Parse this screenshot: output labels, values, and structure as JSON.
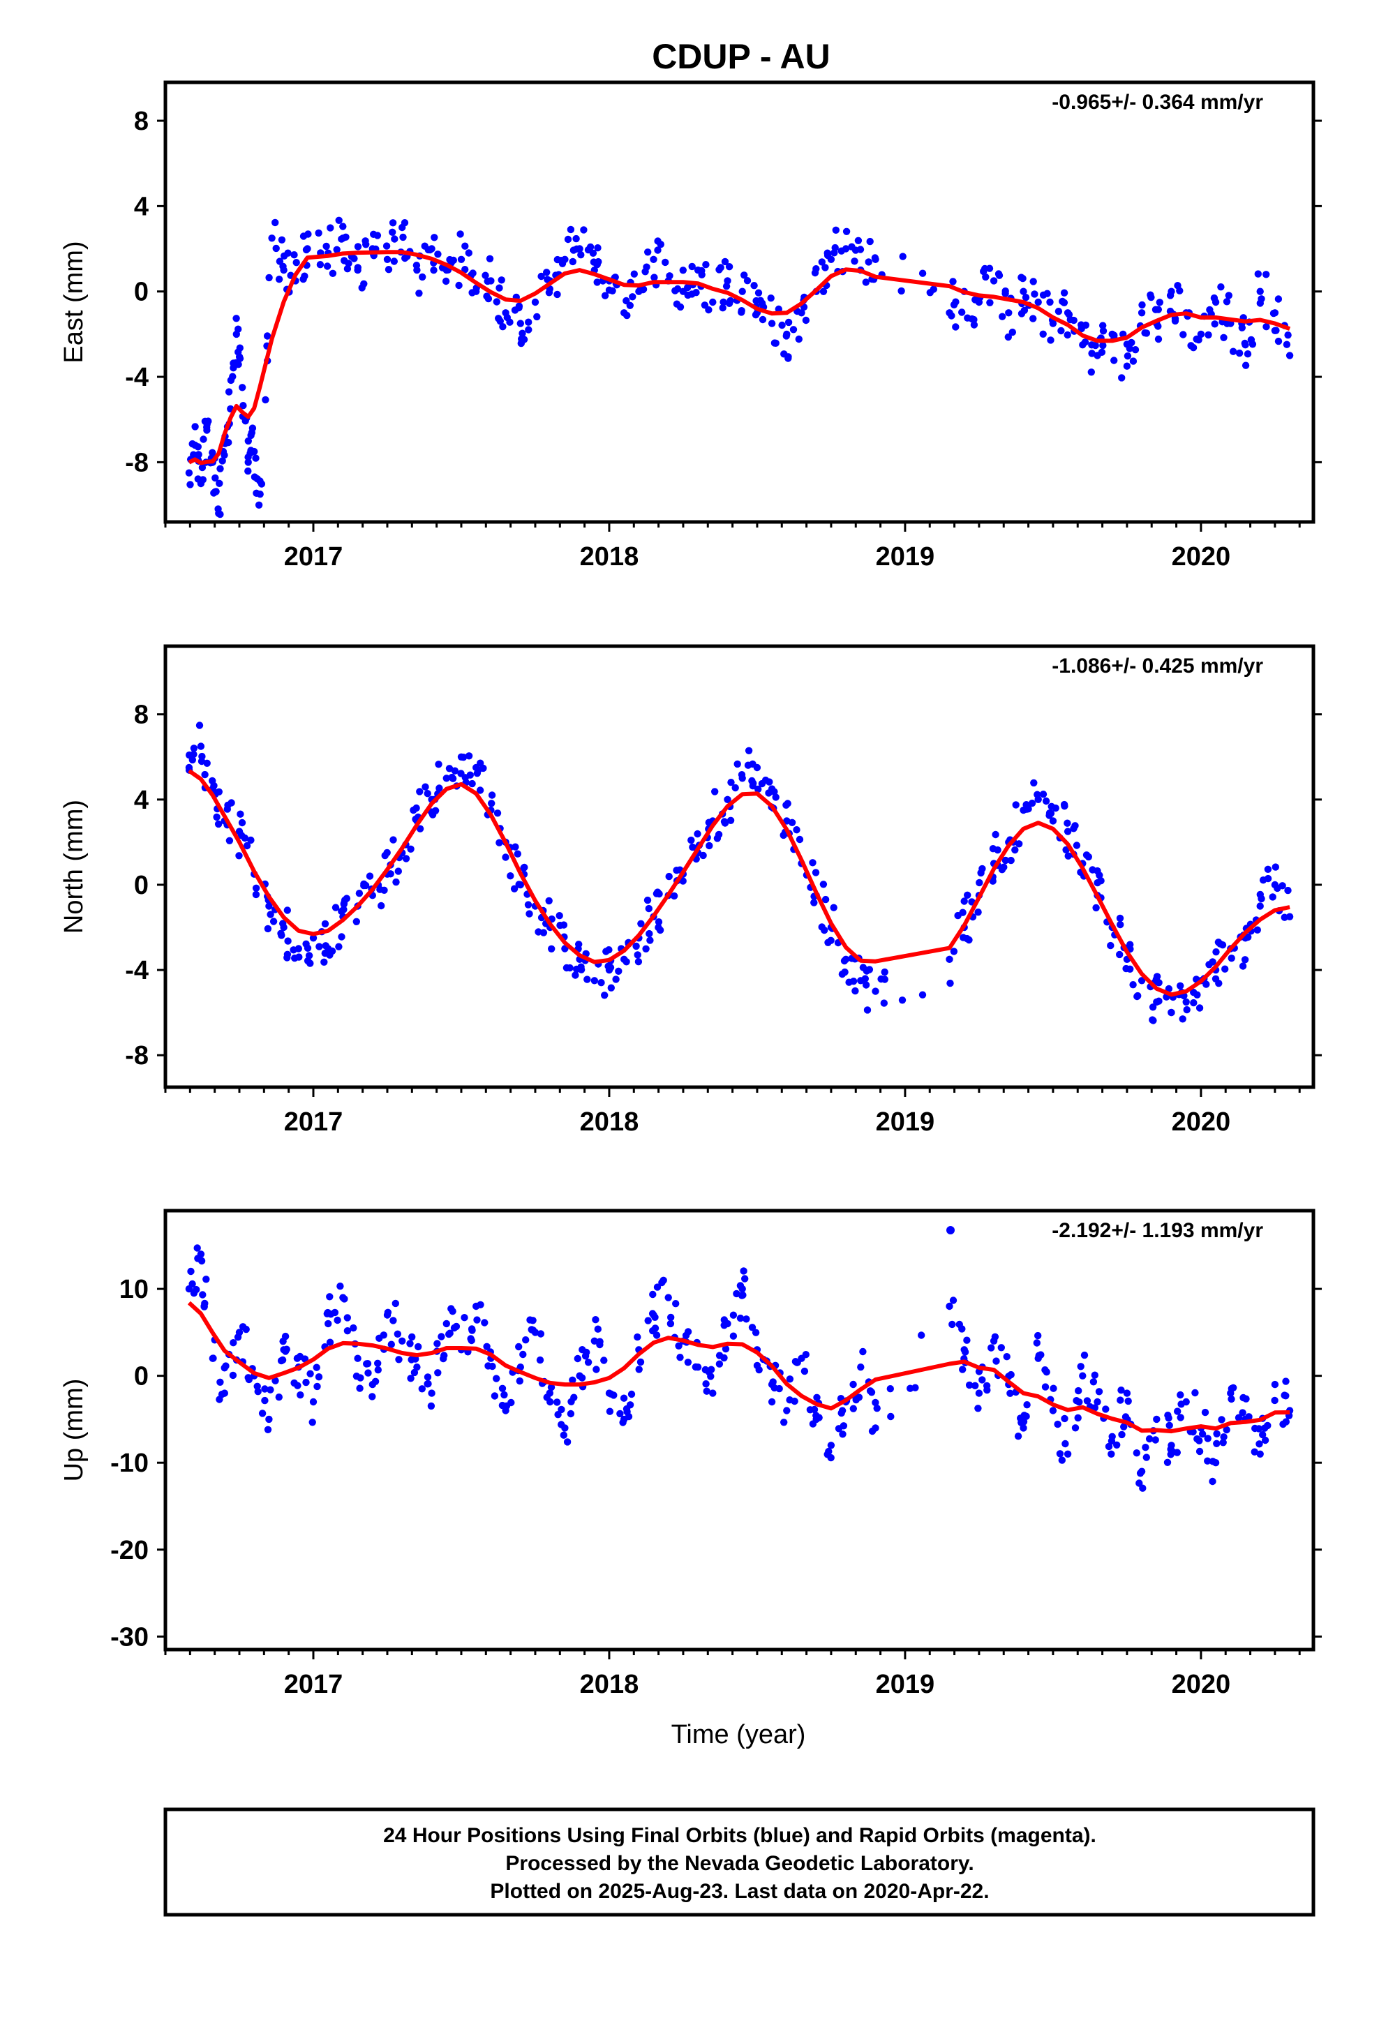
{
  "colors": {
    "observations": "#0000ff",
    "fit": "#ff0000",
    "frame": "#000000"
  },
  "chart_data": {
    "title": "CDUP - AU",
    "xlabel": "Time (year)",
    "x_ticks": [
      "2017",
      "2018",
      "2019",
      "2020"
    ],
    "xlim": [
      2016.5,
      2020.38
    ],
    "panels": [
      {
        "type": "scatter",
        "ylabel": "East (mm)",
        "rate": "-0.965+/- 0.364 mm/yr",
        "ylim": [
          -10.8,
          9.8
        ],
        "yticks": [
          "8",
          "4",
          "0",
          "-4",
          "-8"
        ],
        "series": [
          {
            "x": [
              2016.58,
              2016.6,
              2016.62,
              2016.64,
              2016.66,
              2016.68,
              2016.7,
              2016.72,
              2016.74,
              2016.76,
              2016.78,
              2016.8,
              2016.82,
              2016.86,
              2016.9,
              2016.94,
              2016.98,
              2017.05,
              2017.1,
              2017.15,
              2017.2,
              2017.25,
              2017.3,
              2017.35,
              2017.4,
              2017.45,
              2017.5,
              2017.55,
              2017.6,
              2017.65,
              2017.7,
              2017.75,
              2017.8,
              2017.85,
              2017.9,
              2017.95,
              2018.0,
              2018.05,
              2018.1,
              2018.15,
              2018.2,
              2018.25,
              2018.3,
              2018.35,
              2018.4,
              2018.45,
              2018.5,
              2018.55,
              2018.6,
              2018.65,
              2018.7,
              2018.75,
              2018.8,
              2018.85,
              2018.9,
              2019.15,
              2019.2,
              2019.25,
              2019.3,
              2019.35,
              2019.4,
              2019.45,
              2019.5,
              2019.55,
              2019.6,
              2019.65,
              2019.7,
              2019.75,
              2019.8,
              2019.85,
              2019.9,
              2019.95,
              2020.0,
              2020.05,
              2020.1,
              2020.15,
              2020.2,
              2020.25,
              2020.3
            ],
            "y": [
              -8.5,
              -7.2,
              -9.0,
              -6.5,
              -8.0,
              -10.4,
              -7.0,
              -5.5,
              -2.0,
              -4.5,
              -8.0,
              -7.5,
              -9.5,
              2.5,
              1.0,
              0.5,
              2.0,
              1.8,
              2.5,
              1.0,
              2.0,
              1.5,
              3.0,
              1.0,
              2.0,
              1.0,
              1.5,
              0.0,
              0.5,
              -1.0,
              -1.5,
              -0.5,
              0.5,
              1.5,
              2.0,
              1.0,
              0.5,
              -1.0,
              0.0,
              1.5,
              0.5,
              0.0,
              1.0,
              -0.5,
              0.5,
              0.0,
              -1.0,
              -1.5,
              -2.0,
              -1.0,
              0.0,
              1.5,
              2.0,
              1.0,
              1.5,
              -1.0,
              0.0,
              -0.5,
              0.5,
              -1.0,
              0.0,
              -0.5,
              -1.5,
              -1.0,
              -2.5,
              -3.0,
              -2.0,
              -3.5,
              -1.0,
              -1.5,
              0.0,
              -1.0,
              -2.0,
              -0.5,
              -1.5,
              -2.5,
              0.0,
              -1.0,
              -3.0
            ]
          }
        ]
      },
      {
        "type": "scatter",
        "ylabel": "North (mm)",
        "rate": "-1.086+/- 0.425 mm/yr",
        "ylim": [
          -9.5,
          11.2
        ],
        "yticks": [
          "8",
          "4",
          "0",
          "-4",
          "-8"
        ],
        "series": [
          {
            "x": [
              2016.58,
              2016.62,
              2016.66,
              2016.7,
              2016.75,
              2016.8,
              2016.85,
              2016.9,
              2016.95,
              2017.0,
              2017.05,
              2017.1,
              2017.15,
              2017.2,
              2017.25,
              2017.3,
              2017.35,
              2017.4,
              2017.45,
              2017.5,
              2017.55,
              2017.6,
              2017.65,
              2017.7,
              2017.75,
              2017.8,
              2017.85,
              2017.9,
              2017.95,
              2018.0,
              2018.05,
              2018.1,
              2018.15,
              2018.2,
              2018.25,
              2018.3,
              2018.35,
              2018.4,
              2018.45,
              2018.5,
              2018.55,
              2018.6,
              2018.65,
              2018.7,
              2018.75,
              2018.8,
              2018.85,
              2018.9,
              2019.15,
              2019.2,
              2019.25,
              2019.3,
              2019.35,
              2019.4,
              2019.45,
              2019.5,
              2019.55,
              2019.6,
              2019.65,
              2019.7,
              2019.75,
              2019.8,
              2019.85,
              2019.9,
              2019.95,
              2020.0,
              2020.05,
              2020.1,
              2020.15,
              2020.2,
              2020.25,
              2020.3
            ],
            "y": [
              5.5,
              6.5,
              4.5,
              3.0,
              2.5,
              0.5,
              -1.0,
              -2.0,
              -3.0,
              -2.5,
              -3.0,
              -1.5,
              -1.0,
              -0.5,
              0.5,
              1.5,
              3.0,
              4.0,
              5.0,
              6.0,
              5.5,
              3.5,
              2.0,
              0.0,
              -1.0,
              -2.0,
              -3.0,
              -3.5,
              -4.5,
              -4.0,
              -3.5,
              -2.5,
              -1.5,
              -0.5,
              0.5,
              1.5,
              3.0,
              4.0,
              5.0,
              5.5,
              4.5,
              3.0,
              1.0,
              -0.5,
              -2.0,
              -3.5,
              -4.5,
              -5.0,
              -3.5,
              -2.0,
              -0.5,
              1.0,
              2.0,
              3.5,
              4.0,
              3.0,
              2.5,
              1.0,
              -0.5,
              -2.0,
              -3.5,
              -4.5,
              -5.5,
              -6.0,
              -5.5,
              -4.5,
              -4.0,
              -3.0,
              -2.5,
              -1.0,
              0.0,
              -1.5
            ]
          }
        ]
      },
      {
        "type": "scatter",
        "ylabel": "Up (mm)",
        "rate": "-2.192+/- 1.193 mm/yr",
        "ylim": [
          -31.5,
          19.0
        ],
        "yticks": [
          "10",
          "0",
          "-10",
          "-20",
          "-30"
        ],
        "series": [
          {
            "x": [
              2016.58,
              2016.62,
              2016.66,
              2016.7,
              2016.75,
              2016.8,
              2016.85,
              2016.9,
              2016.95,
              2017.0,
              2017.05,
              2017.1,
              2017.15,
              2017.2,
              2017.25,
              2017.3,
              2017.35,
              2017.4,
              2017.45,
              2017.5,
              2017.55,
              2017.6,
              2017.65,
              2017.7,
              2017.75,
              2017.8,
              2017.85,
              2017.9,
              2017.95,
              2018.0,
              2018.05,
              2018.1,
              2018.15,
              2018.2,
              2018.25,
              2018.3,
              2018.35,
              2018.4,
              2018.45,
              2018.5,
              2018.55,
              2018.6,
              2018.65,
              2018.7,
              2018.75,
              2018.8,
              2018.85,
              2018.9,
              2019.15,
              2019.2,
              2019.25,
              2019.3,
              2019.35,
              2019.4,
              2019.45,
              2019.5,
              2019.55,
              2019.6,
              2019.65,
              2019.7,
              2019.75,
              2019.8,
              2019.85,
              2019.9,
              2019.95,
              2020.0,
              2020.05,
              2020.1,
              2020.15,
              2020.2,
              2020.25,
              2020.3
            ],
            "y": [
              10,
              14,
              2,
              -2,
              5,
              0,
              -5,
              3,
              1,
              -3,
              6,
              9,
              2,
              -1,
              7,
              4,
              1,
              -2,
              6,
              3,
              8,
              2,
              -4,
              1,
              5,
              -3,
              -6,
              0,
              4,
              -2,
              -5,
              3,
              7,
              9,
              4,
              1,
              -2,
              6,
              10,
              3,
              -1,
              -4,
              2,
              -5,
              -8,
              -3,
              1,
              -6,
              8,
              3,
              -2,
              4,
              -1,
              -6,
              2,
              -4,
              -9,
              0,
              -3,
              -7,
              -2,
              -11,
              -5,
              -8,
              -3,
              -6,
              -10,
              -2,
              -5,
              -9,
              -1,
              -4
            ]
          }
        ],
        "legend_symbol": "observations"
      }
    ],
    "footer": [
      "24 Hour Positions Using Final Orbits (blue) and Rapid Orbits (magenta).",
      "Processed by the Nevada Geodetic Laboratory.",
      "Plotted on 2025-Aug-23. Last data on 2020-Apr-22."
    ]
  }
}
